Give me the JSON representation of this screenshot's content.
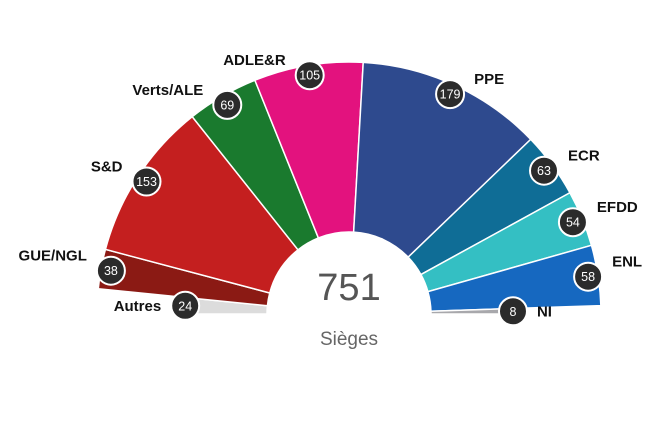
{
  "chart_data": {
    "type": "pie",
    "subtype": "parliament-hemicycle",
    "total": "751",
    "total_caption": "Sièges",
    "series": [
      {
        "name": "Autres",
        "value": 24,
        "color": "#dcdcdc"
      },
      {
        "name": "GUE/NGL",
        "value": 38,
        "color": "#8b1a14"
      },
      {
        "name": "S&D",
        "value": 153,
        "color": "#c41f1f"
      },
      {
        "name": "Verts/ALE",
        "value": 69,
        "color": "#1a7a2e"
      },
      {
        "name": "ADLE&R",
        "value": 105,
        "color": "#e3127e"
      },
      {
        "name": "PPE",
        "value": 179,
        "color": "#2e4a8e"
      },
      {
        "name": "ECR",
        "value": 63,
        "color": "#0f6d96"
      },
      {
        "name": "EFDD",
        "value": 54,
        "color": "#34bfc3"
      },
      {
        "name": "ENL",
        "value": 58,
        "color": "#1668c0"
      },
      {
        "name": "NI",
        "value": 8,
        "color": "#a8a8ac"
      }
    ]
  }
}
